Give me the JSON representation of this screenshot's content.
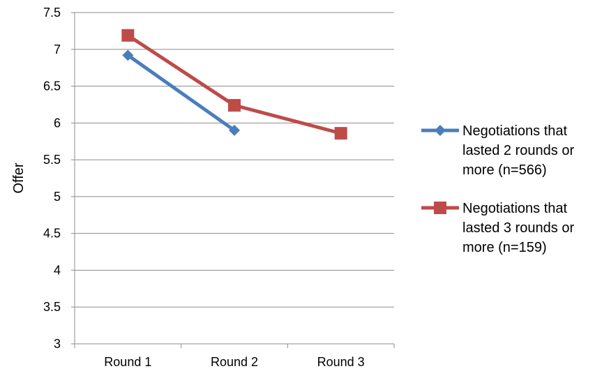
{
  "chart_data": {
    "type": "line",
    "categories": [
      "Round 1",
      "Round 2",
      "Round 3"
    ],
    "ylabel": "Offer",
    "xlabel": "",
    "ylim": [
      3,
      7.5
    ],
    "yticks": [
      "3",
      "3.5",
      "4",
      "4.5",
      "5",
      "5.5",
      "6",
      "6.5",
      "7",
      "7.5"
    ],
    "grid": true,
    "legend_position": "right",
    "series": [
      {
        "name": "Negotiations that lasted 2 rounds or more (n=566)",
        "legend_lines": [
          "Negotiations that",
          "lasted 2 rounds or",
          "more (n=566)"
        ],
        "values": [
          6.92,
          5.9,
          null
        ],
        "color": "#4a7ebb",
        "marker": "diamond"
      },
      {
        "name": "Negotiations that lasted 3 rounds or more (n=159)",
        "legend_lines": [
          "Negotiations that",
          "lasted 3 rounds or",
          "more (n=159)"
        ],
        "values": [
          7.19,
          6.24,
          5.86
        ],
        "color": "#be4b48",
        "marker": "square"
      }
    ]
  }
}
